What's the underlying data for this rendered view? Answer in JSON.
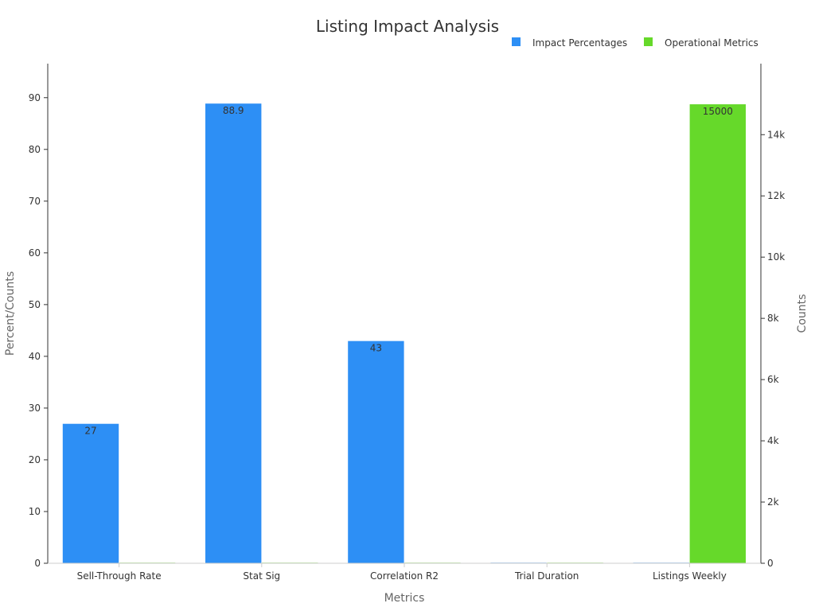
{
  "chart_data": {
    "type": "bar",
    "title": "Listing Impact Analysis",
    "xlabel": "Metrics",
    "ylabel": "Percent/Counts",
    "y2label": "Counts",
    "categories": [
      "Sell-Through Rate",
      "Stat Sig",
      "Correlation R2",
      "Trial Duration",
      "Listings Weekly"
    ],
    "series": [
      {
        "name": "Impact Percentages",
        "axis": "left",
        "color": "#2d8ff5",
        "values": [
          27,
          88.9,
          43,
          0,
          0
        ]
      },
      {
        "name": "Operational Metrics",
        "axis": "right",
        "color": "#66d92a",
        "values": [
          0,
          0,
          0,
          0,
          15000
        ]
      }
    ],
    "data_labels": [
      {
        "series": 0,
        "index": 0,
        "text": "27"
      },
      {
        "series": 0,
        "index": 1,
        "text": "88.9"
      },
      {
        "series": 0,
        "index": 2,
        "text": "43"
      },
      {
        "series": 1,
        "index": 4,
        "text": "15000"
      }
    ],
    "ylim": [
      0,
      93.5
    ],
    "y_ticks": [
      0,
      10,
      20,
      30,
      40,
      50,
      60,
      70,
      80,
      90
    ],
    "y2lim": [
      0,
      15800
    ],
    "y2_ticks": [
      0,
      2000,
      4000,
      6000,
      8000,
      10000,
      12000,
      14000
    ],
    "y2_tick_labels": [
      "0",
      "2k",
      "4k",
      "6k",
      "8k",
      "10k",
      "12k",
      "14k"
    ],
    "legend_position": "top-right",
    "grid": false
  }
}
